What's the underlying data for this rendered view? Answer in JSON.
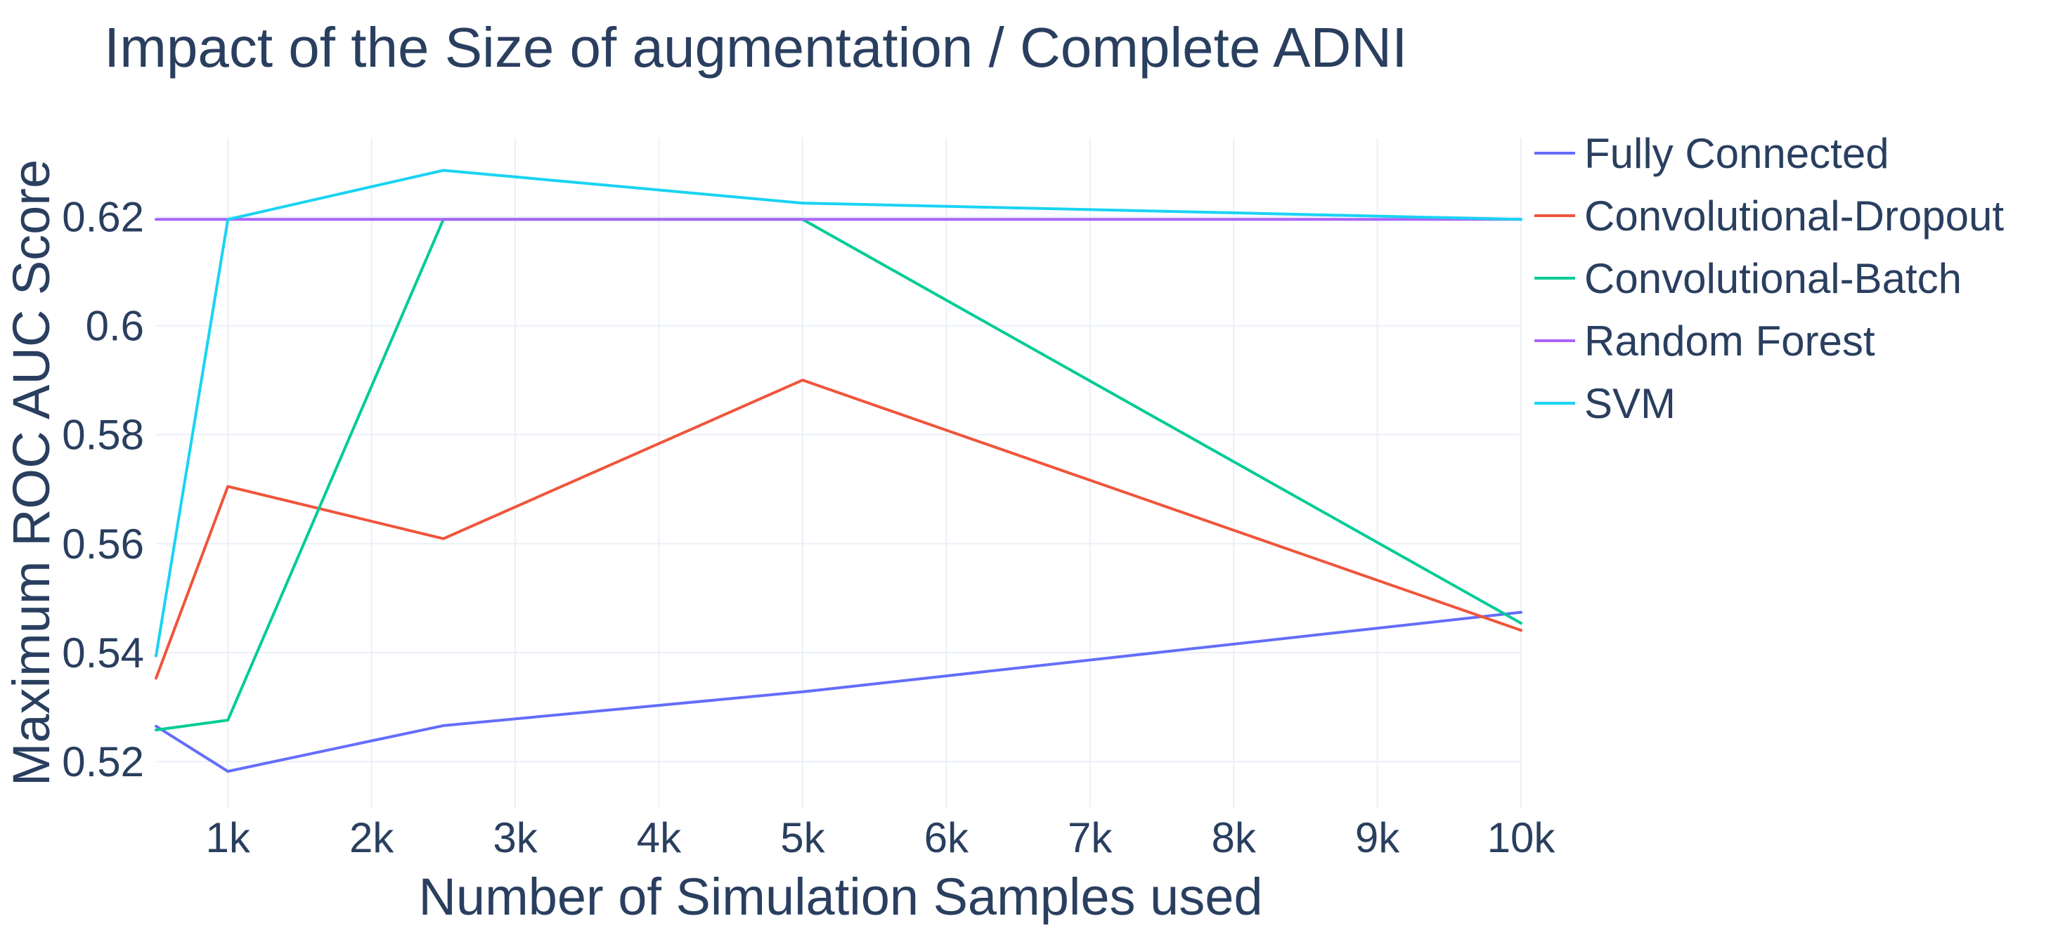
{
  "chart_data": {
    "type": "line",
    "title": "Impact of the Size of augmentation / Complete ADNI",
    "xlabel": "Number of Simulation Samples used",
    "ylabel": "Maximum ROC AUC Score",
    "x": [
      500,
      1000,
      2500,
      5000,
      10000
    ],
    "xlim": [
      500,
      10000
    ],
    "ylim": [
      0.5115,
      0.6345
    ],
    "xticks": [
      {
        "value": 1000,
        "label": "1k"
      },
      {
        "value": 2000,
        "label": "2k"
      },
      {
        "value": 3000,
        "label": "3k"
      },
      {
        "value": 4000,
        "label": "4k"
      },
      {
        "value": 5000,
        "label": "5k"
      },
      {
        "value": 6000,
        "label": "6k"
      },
      {
        "value": 7000,
        "label": "7k"
      },
      {
        "value": 8000,
        "label": "8k"
      },
      {
        "value": 9000,
        "label": "9k"
      },
      {
        "value": 10000,
        "label": "10k"
      }
    ],
    "yticks": [
      {
        "value": 0.52,
        "label": "0.52"
      },
      {
        "value": 0.54,
        "label": "0.54"
      },
      {
        "value": 0.56,
        "label": "0.56"
      },
      {
        "value": 0.58,
        "label": "0.58"
      },
      {
        "value": 0.6,
        "label": "0.6"
      },
      {
        "value": 0.62,
        "label": "0.62"
      }
    ],
    "grid": true,
    "legend_position": "top-right",
    "series": [
      {
        "name": "Fully Connected",
        "color": "#636efa",
        "values": [
          0.5265,
          0.5182,
          0.5266,
          0.5328,
          0.5474
        ]
      },
      {
        "name": "Convolutional-Dropout",
        "color": "#EF553B",
        "values": [
          0.5353,
          0.5705,
          0.5609,
          0.59,
          0.5441
        ]
      },
      {
        "name": "Convolutional-Batch",
        "color": "#00cc96",
        "values": [
          0.5258,
          0.5276,
          0.6195,
          0.6195,
          0.5454
        ]
      },
      {
        "name": "Random Forest",
        "color": "#ab63fa",
        "values": [
          0.6195,
          0.6195,
          0.6195,
          0.6195,
          0.6195
        ]
      },
      {
        "name": "SVM",
        "color": "#19d3f3",
        "values": [
          0.5394,
          0.6195,
          0.6285,
          0.6225,
          0.6195
        ]
      }
    ]
  }
}
